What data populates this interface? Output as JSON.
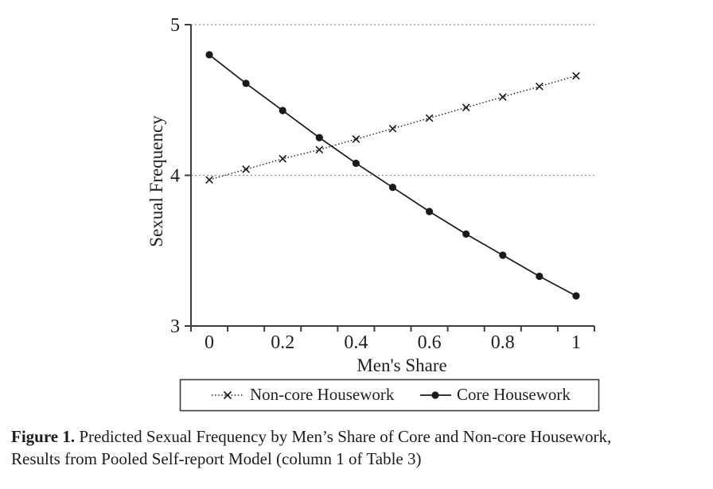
{
  "colors": {
    "line": "#1a1a1a",
    "axis": "#3d3d3d",
    "grid": "#8f8f8f",
    "text": "#1f1f1f"
  },
  "chart_data": {
    "type": "line",
    "x": [
      0,
      0.1,
      0.2,
      0.3,
      0.4,
      0.5,
      0.6,
      0.7,
      0.8,
      0.9,
      1.0
    ],
    "series": [
      {
        "name": "Non-core Housework",
        "line_style": "dotted",
        "marker": "x",
        "values": [
          3.97,
          4.04,
          4.11,
          4.17,
          4.24,
          4.31,
          4.38,
          4.45,
          4.52,
          4.59,
          4.66
        ]
      },
      {
        "name": "Core Housework",
        "line_style": "solid",
        "marker": "circle",
        "values": [
          4.8,
          4.61,
          4.43,
          4.25,
          4.08,
          3.92,
          3.76,
          3.61,
          3.47,
          3.33,
          3.2
        ]
      }
    ],
    "xlabel": "Men's Share",
    "ylabel": "Sexual Frequency",
    "ylim": [
      3,
      5
    ],
    "yticks": [
      5,
      4,
      3
    ],
    "xticks": [
      {
        "index": 0,
        "label": "0"
      },
      {
        "index": 2,
        "label": "0.2"
      },
      {
        "index": 4,
        "label": "0.4"
      },
      {
        "index": 6,
        "label": "0.6"
      },
      {
        "index": 8,
        "label": "0.8"
      },
      {
        "index": 10,
        "label": "1"
      }
    ],
    "gridlines_at": [
      5,
      4
    ],
    "grid": "dotted-horizontal",
    "legend_position": "bottom-boxed"
  },
  "caption": {
    "bold": "Figure 1.",
    "line1": " Predicted Sexual Frequency by Men’s Share of Core and Non-core Housework,",
    "line2": "Results from Pooled Self-report Model (column 1 of Table 3)"
  }
}
